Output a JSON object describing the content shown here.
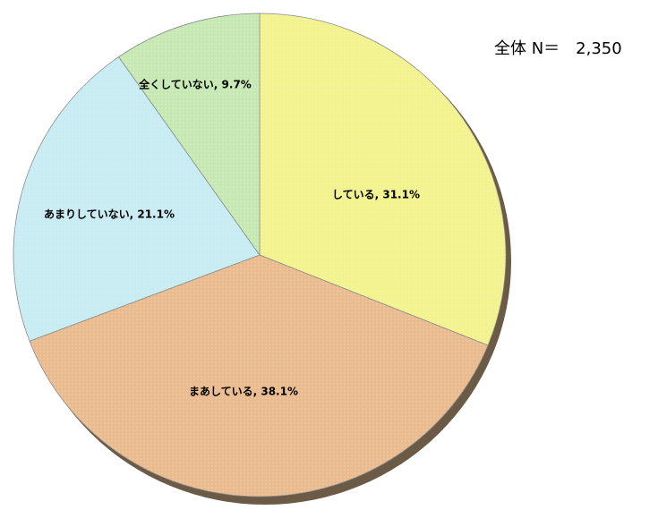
{
  "chart_data": {
    "type": "pie",
    "annotation": "全体 N＝　2,350",
    "categories": [
      "している",
      "まあしている",
      "あまりしていない",
      "全くしていない"
    ],
    "values": [
      31.1,
      38.1,
      21.1,
      9.7
    ],
    "value_labels": [
      "している, 31.1%",
      "まあしている, 38.1%",
      "あまりしていない, 21.1%",
      "全くしていない, 9.7%"
    ],
    "colors": [
      "#f2f28e",
      "#e9bb8e",
      "#c8ecf3",
      "#c6e9b4"
    ]
  }
}
